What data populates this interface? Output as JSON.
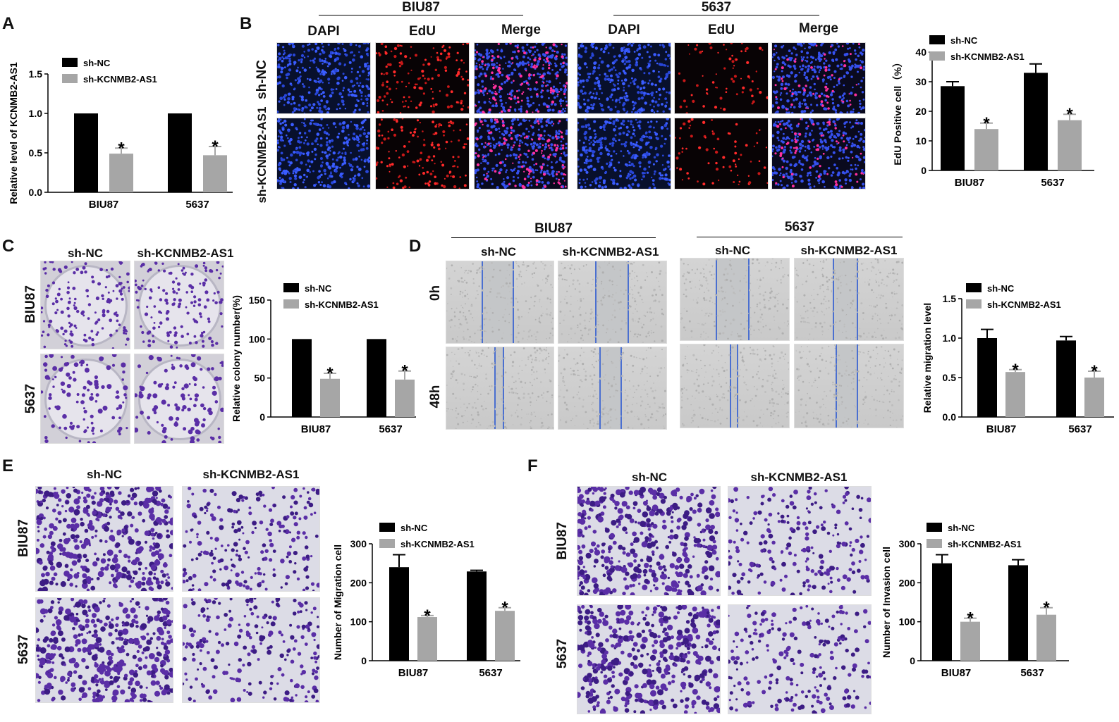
{
  "panels": {
    "A": {
      "letter": "A"
    },
    "B": {
      "letter": "B",
      "cell_lines": [
        "BIU87",
        "5637"
      ],
      "stains": [
        "DAPI",
        "EdU",
        "Merge"
      ],
      "row_labels": [
        "sh-NC",
        "sh-KCNMB2-AS1"
      ]
    },
    "C": {
      "letter": "C",
      "col_labels": [
        "sh-NC",
        "sh-KCNMB2-AS1"
      ],
      "row_labels": [
        "BIU87",
        "5637"
      ]
    },
    "D": {
      "letter": "D",
      "cell_lines": [
        "BIU87",
        "5637"
      ],
      "col_labels": [
        "sh-NC",
        "sh-KCNMB2-AS1"
      ],
      "row_labels": [
        "0h",
        "48h"
      ]
    },
    "E": {
      "letter": "E",
      "col_labels": [
        "sh-NC",
        "sh-KCNMB2-AS1"
      ],
      "row_labels": [
        "BIU87",
        "5637"
      ]
    },
    "F": {
      "letter": "F",
      "col_labels": [
        "sh-NC",
        "sh-KCNMB2-AS1"
      ],
      "row_labels": [
        "BIU87",
        "5637"
      ]
    }
  },
  "colors": {
    "sh_nc": "#000000",
    "sh_kcnmb2": "#a6a6a6",
    "scratch_line": "#4a6fd0",
    "crystal_violet": "#5a2ea6"
  },
  "chart_data": [
    {
      "id": "A",
      "type": "bar",
      "categories": [
        "BIU87",
        "5637"
      ],
      "series": [
        {
          "name": "sh-NC",
          "values": [
            1.0,
            1.0
          ],
          "errors": [
            0,
            0
          ]
        },
        {
          "name": "sh-KCNMB2-AS1",
          "values": [
            0.49,
            0.47
          ],
          "errors": [
            0.07,
            0.11
          ]
        }
      ],
      "ylabel": "Relative level of KCNMB2-AS1",
      "ylim": [
        0,
        1.5
      ],
      "yticks": [
        "0.0",
        "0.5",
        "1.0",
        "1.5"
      ],
      "significance": [
        "*",
        "*"
      ],
      "legend": "top-left"
    },
    {
      "id": "B",
      "type": "bar",
      "categories": [
        "BIU87",
        "5637"
      ],
      "series": [
        {
          "name": "sh-NC",
          "values": [
            28.5,
            33
          ],
          "errors": [
            1.5,
            3
          ]
        },
        {
          "name": "sh-KCNMB2-AS1",
          "values": [
            14,
            17
          ],
          "errors": [
            2,
            2
          ]
        }
      ],
      "ylabel": "EdU Positive cell（%）",
      "ylim": [
        0,
        40
      ],
      "yticks": [
        "0",
        "10",
        "20",
        "30",
        "40"
      ],
      "significance": [
        "*",
        "*"
      ],
      "legend": "top-left"
    },
    {
      "id": "C",
      "type": "bar",
      "categories": [
        "BIU87",
        "5637"
      ],
      "series": [
        {
          "name": "sh-NC",
          "values": [
            100,
            100
          ],
          "errors": [
            0,
            0
          ]
        },
        {
          "name": "sh-KCNMB2-AS1",
          "values": [
            49,
            48
          ],
          "errors": [
            7,
            11
          ]
        }
      ],
      "ylabel": "Relative colony  number(%)",
      "ylim": [
        0,
        150
      ],
      "yticks": [
        "0",
        "50",
        "100",
        "150"
      ],
      "significance": [
        "*",
        "*"
      ],
      "legend": "top-left"
    },
    {
      "id": "D",
      "type": "bar",
      "categories": [
        "BIU87",
        "5637"
      ],
      "series": [
        {
          "name": "sh-NC",
          "values": [
            1.0,
            0.97
          ],
          "errors": [
            0.11,
            0.05
          ]
        },
        {
          "name": "sh-KCNMB2-AS1",
          "values": [
            0.57,
            0.5
          ],
          "errors": [
            0.03,
            0.08
          ]
        }
      ],
      "ylabel": "Relative migration level",
      "ylim": [
        0,
        1.5
      ],
      "yticks": [
        "0.0",
        "0.5",
        "1.0",
        "1.5"
      ],
      "significance": [
        "*",
        "*"
      ],
      "legend": "top-left"
    },
    {
      "id": "E",
      "type": "bar",
      "categories": [
        "BIU87",
        "5637"
      ],
      "series": [
        {
          "name": "sh-NC",
          "values": [
            240,
            229
          ],
          "errors": [
            32,
            3
          ]
        },
        {
          "name": "sh-KCNMB2-AS1",
          "values": [
            112,
            128
          ],
          "errors": [
            4,
            8
          ]
        }
      ],
      "ylabel": "Number of Migration cell",
      "ylim": [
        0,
        300
      ],
      "yticks": [
        "0",
        "100",
        "200",
        "300"
      ],
      "significance": [
        "*",
        "*"
      ],
      "legend": "top-left"
    },
    {
      "id": "F",
      "type": "bar",
      "categories": [
        "BIU87",
        "5637"
      ],
      "series": [
        {
          "name": "sh-NC",
          "values": [
            250,
            245
          ],
          "errors": [
            22,
            14
          ]
        },
        {
          "name": "sh-KCNMB2-AS1",
          "values": [
            100,
            118
          ],
          "errors": [
            9,
            18
          ]
        }
      ],
      "ylabel": "Number of Invasion cell",
      "ylim": [
        0,
        300
      ],
      "yticks": [
        "0",
        "100",
        "200",
        "300"
      ],
      "significance": [
        "*",
        "*"
      ],
      "legend": "top-left"
    }
  ]
}
